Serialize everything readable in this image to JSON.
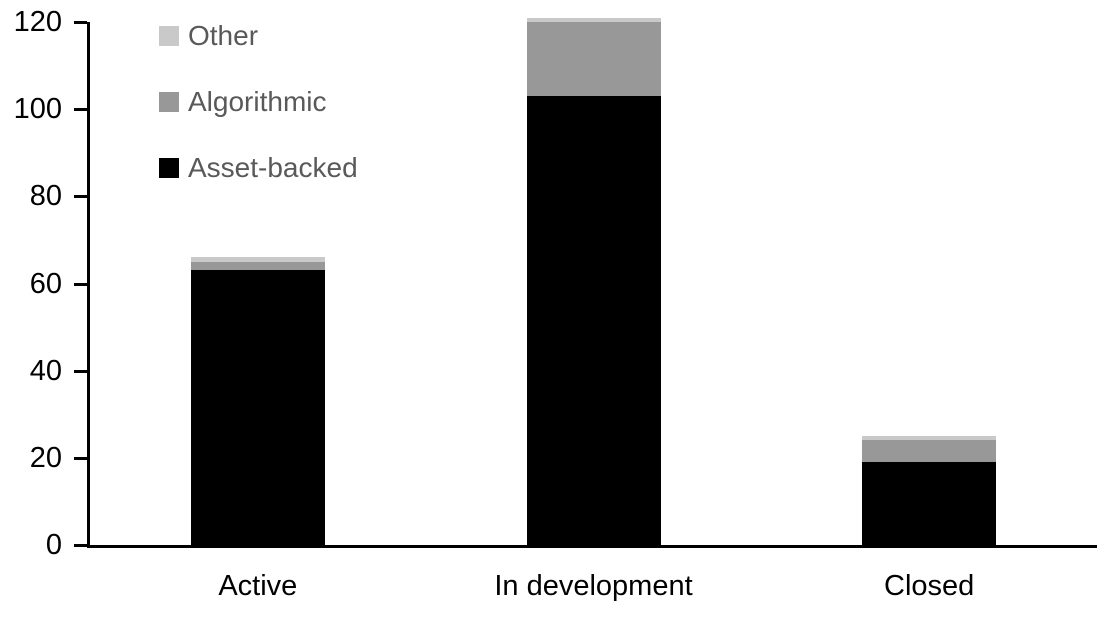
{
  "chart_data": {
    "type": "bar",
    "stacked": true,
    "title": "",
    "xlabel": "",
    "ylabel": "",
    "categories": [
      "Active",
      "In development",
      "Closed"
    ],
    "series": [
      {
        "name": "Asset-backed",
        "color": "#000000",
        "values": [
          63,
          103,
          19
        ]
      },
      {
        "name": "Algorithmic",
        "color": "#989898",
        "values": [
          2,
          17,
          5
        ]
      },
      {
        "name": "Other",
        "color": "#c9c9c9",
        "values": [
          1,
          1,
          1
        ]
      }
    ],
    "totals": [
      66,
      121,
      25
    ],
    "ylim": [
      0,
      120
    ],
    "ytick_step": 20,
    "ytick_labels": [
      "0",
      "20",
      "40",
      "60",
      "80",
      "100",
      "120"
    ],
    "grid": false,
    "legend_position": "top-left-inside",
    "legend_order": [
      "Other",
      "Algorithmic",
      "Asset-backed"
    ]
  },
  "colors": {
    "background": "#ffffff",
    "axis": "#000000",
    "tick_label_text": "#000000",
    "category_label_text": "#000000",
    "legend_text": "#595959"
  }
}
